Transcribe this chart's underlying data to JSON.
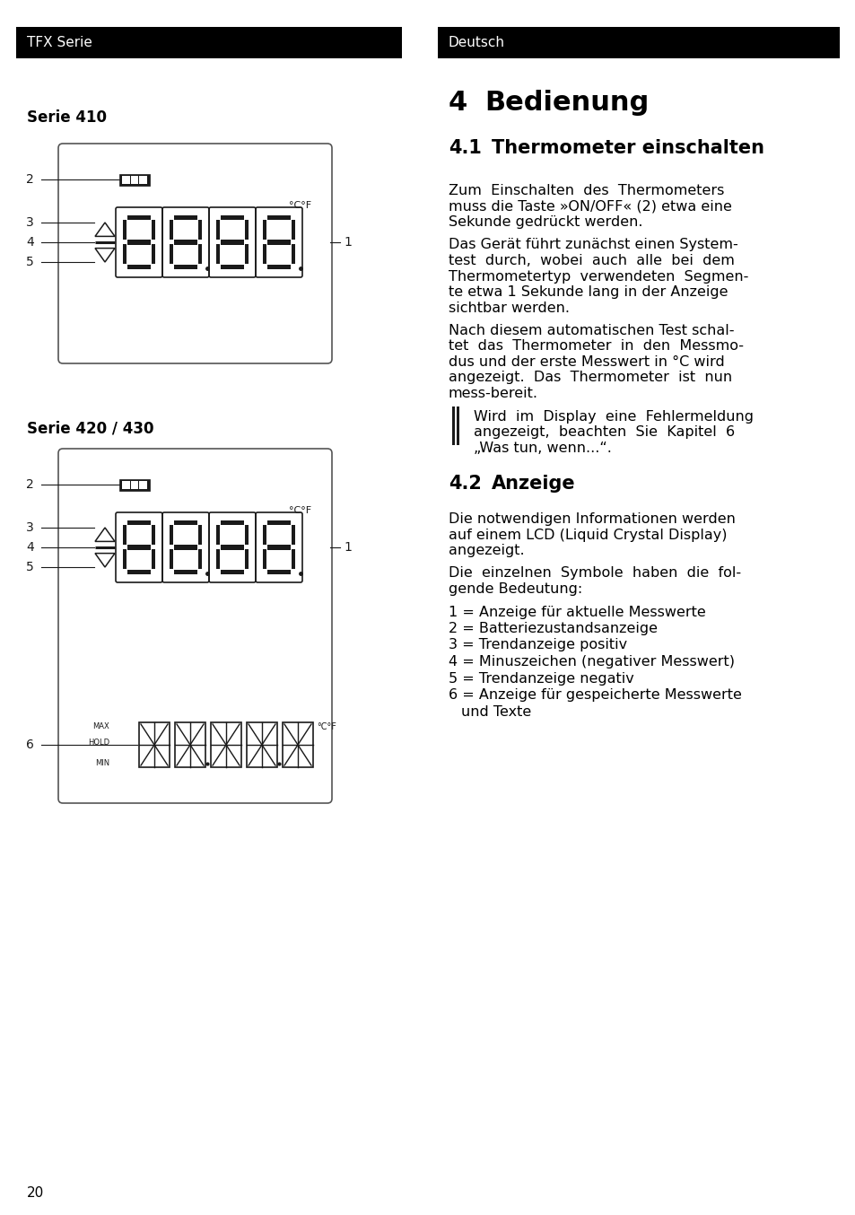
{
  "header_left": "TFX Serie",
  "header_right": "Deutsch",
  "header_bg": "#000000",
  "header_text_color": "#ffffff",
  "page_bg": "#ffffff",
  "section_title": "4   Bedienung",
  "subsection1_title": "4.1  Thermometer einschalten",
  "para1_lines": [
    "Zum  Einschalten  des  Thermometers",
    "muss die Taste »ON/OFF« (2) etwa eine",
    "Sekunde gedrückt werden."
  ],
  "para2_lines": [
    "Das Gerät führt zunächst einen System-",
    "test  durch,  wobei  auch  alle  bei  dem",
    "Thermometertyp  verwendeten  Segmen-",
    "te etwa 1 Sekunde lang in der Anzeige",
    "sichtbar werden."
  ],
  "para3_lines": [
    "Nach diesem automatischen Test schal-",
    "tet  das  Thermometer  in  den  Messmo-",
    "dus und der erste Messwert in °C wird",
    "angezeigt.  Das  Thermometer  ist  nun",
    "mess-bereit."
  ],
  "para4_lines": [
    "Wird  im  Display  eine  Fehlermeldung",
    "angezeigt,  beachten  Sie  Kapitel  6",
    "„Was tun, wenn...“."
  ],
  "subsection2_title": "4.2  Anzeige",
  "para5_lines": [
    "Die notwendigen Informationen werden",
    "auf einem LCD (Liquid Crystal Display)",
    "angezeigt."
  ],
  "para6_lines": [
    "Die  einzelnen  Symbole  haben  die  fol-",
    "gende Bedeutung:"
  ],
  "legend_items": [
    "1 = Anzeige für aktuelle Messwerte",
    "2 = Batteriezustandsanzeige",
    "3 = Trendanzeige positiv",
    "4 = Minuszeichen (negativer Messwert)",
    "5 = Trendanzeige negativ",
    "6 = Anzeige für gespeicherte Messwerte",
    "    und Texte"
  ],
  "diagram1_title": "Serie 410",
  "diagram2_title": "Serie 420 / 430",
  "page_number": "20"
}
